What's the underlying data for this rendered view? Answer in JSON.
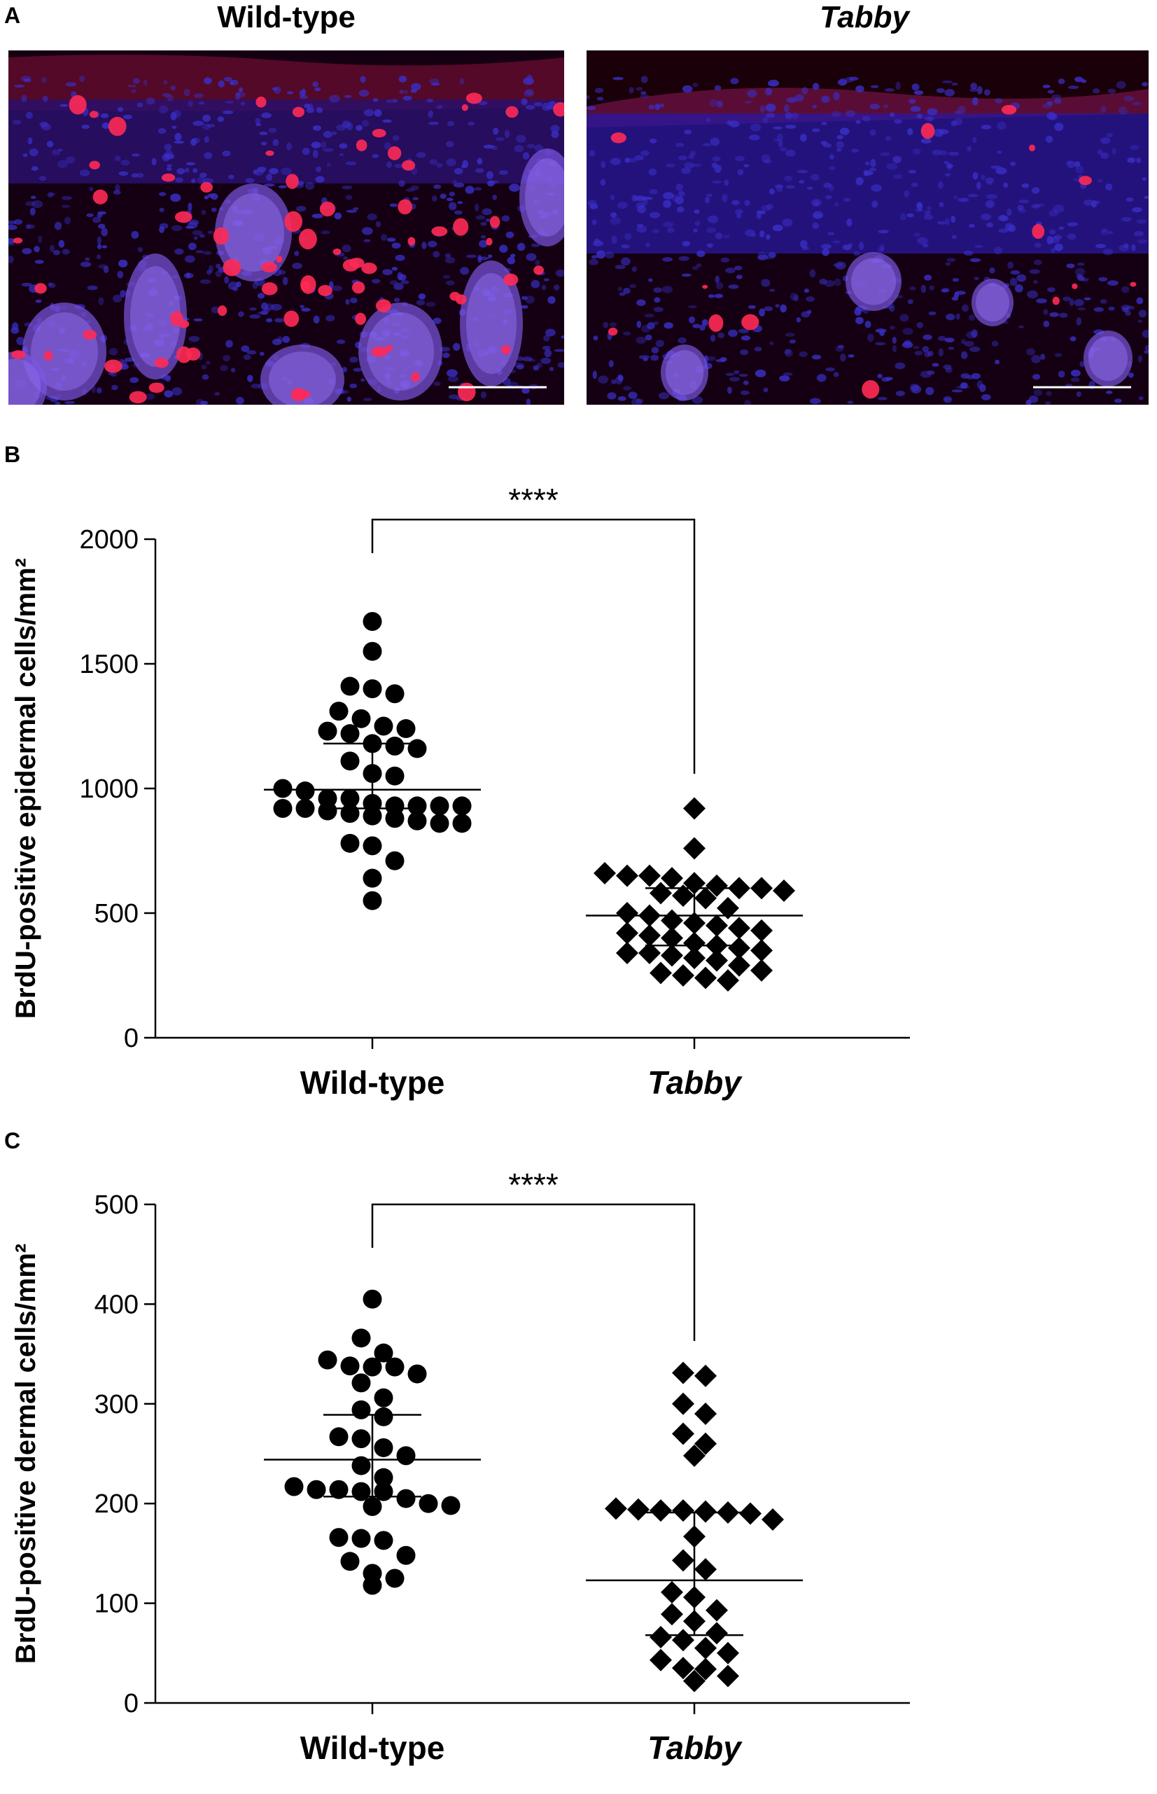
{
  "panelA": {
    "letter": "A",
    "left_title": "Wild-type",
    "right_title": "Tabby",
    "left_image": "fluorescence-micrograph-wild-type-skin",
    "right_image": "fluorescence-micrograph-tabby-skin"
  },
  "colors": {
    "nuclei_blue": "#3a2fc8",
    "brdu_red": "#ff2a55",
    "background": "#140012",
    "markers": "#000000"
  },
  "chart_data": [
    {
      "panel": "B",
      "type": "scatter",
      "ylabel": "BrdU-positive epidermal cells/mm²",
      "ylim": [
        0,
        2000
      ],
      "yticks": [
        0,
        500,
        1000,
        1500,
        2000
      ],
      "categories": [
        "Wild-type",
        "Tabby"
      ],
      "significance": "****",
      "series": [
        {
          "category": "Wild-type",
          "marker": "circle",
          "mean": 995,
          "sd_upper": 1180,
          "sd_lower": 920,
          "values": [
            1670,
            1550,
            1410,
            1400,
            1380,
            1310,
            1280,
            1250,
            1240,
            1230,
            1220,
            1180,
            1170,
            1160,
            1110,
            1060,
            1050,
            1000,
            990,
            960,
            960,
            940,
            930,
            930,
            930,
            930,
            920,
            920,
            910,
            900,
            890,
            880,
            870,
            860,
            860,
            780,
            770,
            710,
            640,
            550
          ]
        },
        {
          "category": "Tabby",
          "marker": "diamond",
          "mean": 490,
          "sd_upper": 600,
          "sd_lower": 370,
          "values": [
            920,
            760,
            660,
            650,
            650,
            640,
            620,
            610,
            600,
            600,
            590,
            580,
            570,
            560,
            520,
            500,
            490,
            470,
            460,
            450,
            440,
            430,
            420,
            410,
            400,
            380,
            370,
            360,
            350,
            340,
            340,
            330,
            320,
            310,
            290,
            270,
            260,
            250,
            240,
            230
          ]
        }
      ]
    },
    {
      "panel": "C",
      "type": "scatter",
      "ylabel": "BrdU-positive dermal cells/mm²",
      "ylim": [
        0,
        500
      ],
      "yticks": [
        0,
        100,
        200,
        300,
        400,
        500
      ],
      "categories": [
        "Wild-type",
        "Tabby"
      ],
      "significance": "****",
      "series": [
        {
          "category": "Wild-type",
          "marker": "circle",
          "mean": 244,
          "sd_upper": 289,
          "sd_lower": 207,
          "values": [
            405,
            366,
            351,
            344,
            338,
            337,
            337,
            330,
            321,
            306,
            294,
            287,
            267,
            265,
            256,
            248,
            238,
            226,
            217,
            214,
            212,
            214,
            212,
            205,
            200,
            198,
            197,
            166,
            165,
            163,
            148,
            142,
            130,
            125,
            118
          ]
        },
        {
          "category": "Tabby",
          "marker": "diamond",
          "mean": 123,
          "sd_upper": 191,
          "sd_lower": 68,
          "values": [
            331,
            328,
            300,
            290,
            270,
            260,
            248,
            195,
            194,
            193,
            193,
            192,
            191,
            190,
            184,
            167,
            143,
            134,
            111,
            106,
            93,
            89,
            82,
            70,
            66,
            63,
            55,
            50,
            43,
            35,
            34,
            27,
            22
          ]
        }
      ]
    }
  ]
}
